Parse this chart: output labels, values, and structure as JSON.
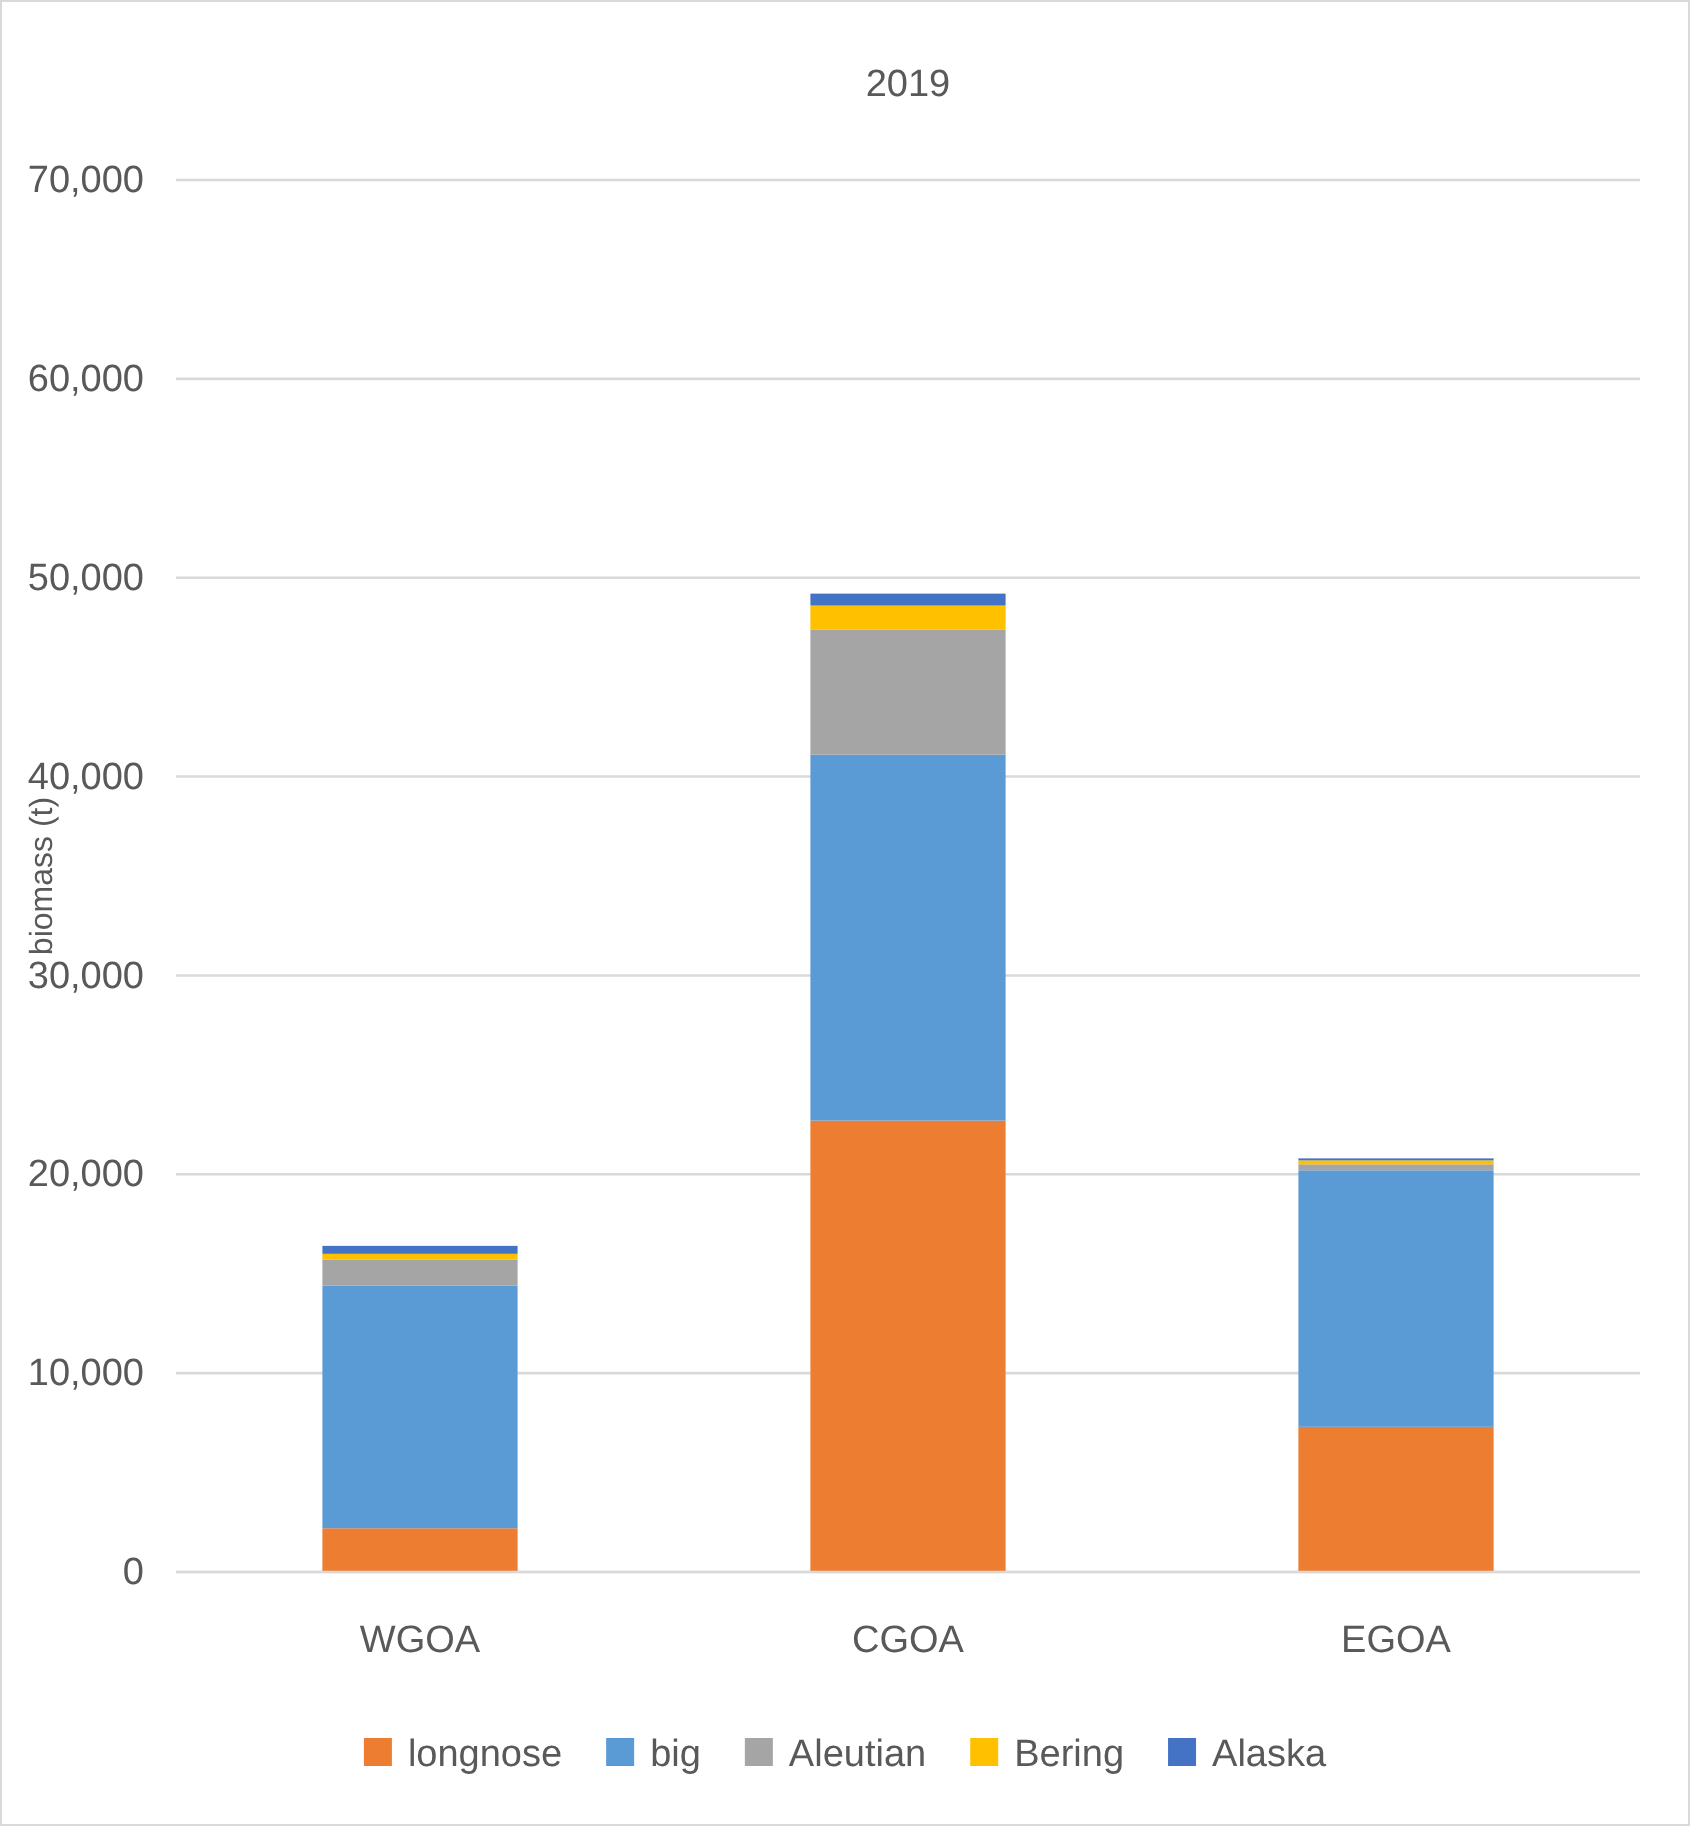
{
  "chart_data": {
    "type": "bar",
    "title": "2019",
    "ylabel": "biomass (t)",
    "categories": [
      "WGOA",
      "CGOA",
      "EGOA"
    ],
    "stacked": true,
    "series": [
      {
        "name": "longnose",
        "color": "#ed7d31",
        "values": [
          2200,
          22700,
          7300
        ]
      },
      {
        "name": "big",
        "color": "#5b9bd5",
        "values": [
          12200,
          18400,
          12900
        ]
      },
      {
        "name": "Aleutian",
        "color": "#a5a5a5",
        "values": [
          1300,
          6300,
          300
        ]
      },
      {
        "name": "Bering",
        "color": "#ffc000",
        "values": [
          300,
          1200,
          200
        ]
      },
      {
        "name": "Alaska",
        "color": "#4472c4",
        "values": [
          400,
          600,
          100
        ]
      }
    ],
    "ylim": [
      0,
      70000
    ],
    "yticks": [
      0,
      {
        "value": 10000,
        "label": "10,000"
      },
      {
        "value": 20000,
        "label": "20,000"
      },
      {
        "value": 30000,
        "label": "30,000"
      },
      {
        "value": 40000,
        "label": "40,000"
      },
      {
        "value": 50000,
        "label": "50,000"
      },
      {
        "value": 60000,
        "label": "60,000"
      },
      {
        "value": 70000,
        "label": "70,000"
      }
    ],
    "grid": "y",
    "legend": "bottom"
  }
}
